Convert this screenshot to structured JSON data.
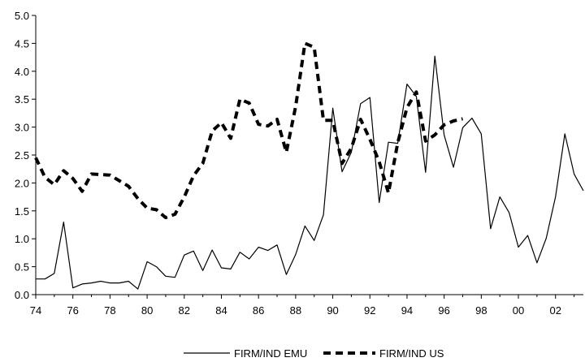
{
  "chart_data": {
    "type": "line",
    "title": "",
    "xlabel": "",
    "ylabel": "",
    "xlim": [
      74,
      103.5
    ],
    "ylim": [
      0,
      5
    ],
    "y_ticks": [
      "0.0",
      "0.5",
      "1.0",
      "1.5",
      "2.0",
      "2.5",
      "3.0",
      "3.5",
      "4.0",
      "4.5",
      "5.0"
    ],
    "x_ticks": [
      "74",
      "76",
      "78",
      "80",
      "82",
      "84",
      "86",
      "88",
      "90",
      "92",
      "94",
      "96",
      "98",
      "00",
      "02"
    ],
    "grid": false,
    "legend_position": "bottom",
    "series": [
      {
        "name": "FIRM/IND EMU",
        "style": "solid",
        "color": "#000000",
        "points": [
          [
            74.0,
            0.28
          ],
          [
            74.5,
            0.28
          ],
          [
            75.0,
            0.38
          ],
          [
            75.5,
            1.3
          ],
          [
            76.0,
            0.12
          ],
          [
            76.5,
            0.19
          ],
          [
            77.0,
            0.21
          ],
          [
            77.5,
            0.24
          ],
          [
            78.0,
            0.21
          ],
          [
            78.5,
            0.21
          ],
          [
            79.0,
            0.24
          ],
          [
            79.5,
            0.1
          ],
          [
            80.0,
            0.59
          ],
          [
            80.5,
            0.5
          ],
          [
            81.0,
            0.33
          ],
          [
            81.5,
            0.31
          ],
          [
            82.0,
            0.71
          ],
          [
            82.5,
            0.78
          ],
          [
            83.0,
            0.43
          ],
          [
            83.5,
            0.8
          ],
          [
            84.0,
            0.48
          ],
          [
            84.5,
            0.46
          ],
          [
            85.0,
            0.76
          ],
          [
            85.5,
            0.64
          ],
          [
            86.0,
            0.85
          ],
          [
            86.5,
            0.79
          ],
          [
            87.0,
            0.89
          ],
          [
            87.5,
            0.36
          ],
          [
            88.0,
            0.72
          ],
          [
            88.5,
            1.23
          ],
          [
            89.0,
            0.97
          ],
          [
            89.5,
            1.43
          ],
          [
            90.0,
            3.34
          ],
          [
            90.5,
            2.2
          ],
          [
            91.0,
            2.55
          ],
          [
            91.5,
            3.42
          ],
          [
            92.0,
            3.53
          ],
          [
            92.5,
            1.65
          ],
          [
            93.0,
            2.73
          ],
          [
            93.5,
            2.71
          ],
          [
            94.0,
            3.77
          ],
          [
            94.5,
            3.55
          ],
          [
            95.0,
            2.19
          ],
          [
            95.5,
            4.27
          ],
          [
            96.0,
            2.86
          ],
          [
            96.5,
            2.28
          ],
          [
            97.0,
            2.99
          ],
          [
            97.5,
            3.16
          ],
          [
            98.0,
            2.88
          ],
          [
            98.5,
            1.18
          ],
          [
            99.0,
            1.75
          ],
          [
            99.5,
            1.47
          ],
          [
            100.0,
            0.85
          ],
          [
            100.5,
            1.06
          ],
          [
            101.0,
            0.57
          ],
          [
            101.5,
            1.01
          ],
          [
            102.0,
            1.75
          ],
          [
            102.5,
            2.88
          ],
          [
            103.0,
            2.16
          ],
          [
            103.5,
            1.86
          ]
        ]
      },
      {
        "name": "FIRM/IND US",
        "style": "dashed",
        "color": "#000000",
        "points": [
          [
            74.0,
            2.45
          ],
          [
            74.5,
            2.1
          ],
          [
            75.0,
            1.97
          ],
          [
            75.5,
            2.22
          ],
          [
            76.0,
            2.08
          ],
          [
            76.5,
            1.85
          ],
          [
            77.0,
            2.16
          ],
          [
            77.5,
            2.15
          ],
          [
            78.0,
            2.14
          ],
          [
            78.5,
            2.04
          ],
          [
            79.0,
            1.94
          ],
          [
            79.5,
            1.72
          ],
          [
            80.0,
            1.55
          ],
          [
            80.5,
            1.52
          ],
          [
            81.0,
            1.38
          ],
          [
            81.5,
            1.44
          ],
          [
            82.0,
            1.75
          ],
          [
            82.5,
            2.13
          ],
          [
            83.0,
            2.35
          ],
          [
            83.5,
            2.93
          ],
          [
            84.0,
            3.08
          ],
          [
            84.5,
            2.8
          ],
          [
            85.0,
            3.5
          ],
          [
            85.5,
            3.43
          ],
          [
            86.0,
            3.05
          ],
          [
            86.5,
            3.02
          ],
          [
            87.0,
            3.14
          ],
          [
            87.5,
            2.55
          ],
          [
            88.0,
            3.37
          ],
          [
            88.5,
            4.5
          ],
          [
            89.0,
            4.43
          ],
          [
            89.5,
            3.12
          ],
          [
            90.0,
            3.12
          ],
          [
            90.5,
            2.35
          ],
          [
            91.0,
            2.62
          ],
          [
            91.5,
            3.14
          ],
          [
            92.0,
            2.78
          ],
          [
            92.5,
            2.38
          ],
          [
            93.0,
            1.82
          ],
          [
            93.5,
            2.72
          ],
          [
            94.0,
            3.35
          ],
          [
            94.5,
            3.63
          ],
          [
            95.0,
            2.75
          ],
          [
            95.5,
            2.86
          ],
          [
            96.0,
            3.04
          ],
          [
            96.5,
            3.11
          ],
          [
            97.0,
            3.15
          ]
        ]
      }
    ]
  }
}
